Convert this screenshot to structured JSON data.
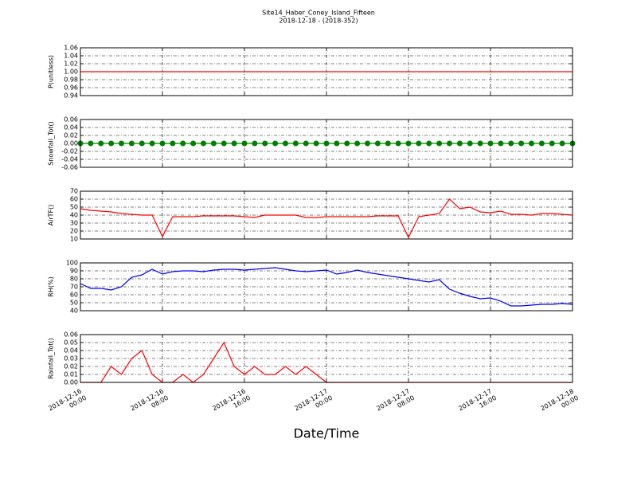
{
  "chart_data": [
    {
      "type": "line",
      "title": "Site14_Haber_Coney_Island_Fifteen",
      "subtitle": "2018-12-18 - (2018-352)",
      "ylabel": "P(unitless)",
      "color": "#ff0000",
      "grid": true,
      "xlim": [
        "2018-12-16 00:00",
        "2018-12-18 00:00"
      ],
      "xticks": [
        "2018-12-16 00:00",
        "2018-12-16 08:00",
        "2018-12-16 16:00",
        "2018-12-17 00:00",
        "2018-12-17 08:00",
        "2018-12-17 16:00",
        "2018-12-18 00:00"
      ],
      "ylim": [
        0.94,
        1.06
      ],
      "yticks": [
        0.94,
        0.96,
        0.98,
        {
          "value": 1,
          "label": "1.00"
        },
        1.02,
        1.04,
        1.06
      ],
      "x": [
        "2018-12-16 00:00",
        "2018-12-16 01:00",
        "2018-12-16 02:00",
        "2018-12-16 03:00",
        "2018-12-16 04:00",
        "2018-12-16 05:00",
        "2018-12-16 06:00",
        "2018-12-16 07:00",
        "2018-12-16 08:00",
        "2018-12-16 09:00",
        "2018-12-16 10:00",
        "2018-12-16 11:00",
        "2018-12-16 12:00",
        "2018-12-16 13:00",
        "2018-12-16 14:00",
        "2018-12-16 15:00",
        "2018-12-16 16:00",
        "2018-12-16 17:00",
        "2018-12-16 18:00",
        "2018-12-16 19:00",
        "2018-12-16 20:00",
        "2018-12-16 21:00",
        "2018-12-16 22:00",
        "2018-12-16 23:00",
        "2018-12-17 00:00",
        "2018-12-17 01:00",
        "2018-12-17 02:00",
        "2018-12-17 03:00",
        "2018-12-17 04:00",
        "2018-12-17 05:00",
        "2018-12-17 06:00",
        "2018-12-17 07:00",
        "2018-12-17 08:00",
        "2018-12-17 09:00",
        "2018-12-17 10:00",
        "2018-12-17 11:00",
        "2018-12-17 12:00",
        "2018-12-17 13:00",
        "2018-12-17 14:00",
        "2018-12-17 15:00",
        "2018-12-17 16:00",
        "2018-12-17 17:00",
        "2018-12-17 18:00",
        "2018-12-17 19:00",
        "2018-12-17 20:00",
        "2018-12-17 21:00",
        "2018-12-17 22:00",
        "2018-12-17 23:00",
        "2018-12-18 00:00"
      ],
      "values": [
        1,
        1,
        1,
        1,
        1,
        1,
        1,
        1,
        1,
        1,
        1,
        1,
        1,
        1,
        1,
        1,
        1,
        1,
        1,
        1,
        1,
        1,
        1,
        1,
        1,
        1,
        1,
        1,
        1,
        1,
        1,
        1,
        1,
        1,
        1,
        1,
        1,
        1,
        1,
        1,
        1,
        1,
        1,
        1,
        1,
        1,
        1,
        1,
        1
      ]
    },
    {
      "type": "line",
      "ylabel": "Snowfall_Tot()",
      "color": "#008000",
      "markers": true,
      "grid": true,
      "xlim": [
        "2018-12-16 00:00",
        "2018-12-18 00:00"
      ],
      "xticks": [
        "2018-12-16 00:00",
        "2018-12-16 08:00",
        "2018-12-16 16:00",
        "2018-12-17 00:00",
        "2018-12-17 08:00",
        "2018-12-17 16:00",
        "2018-12-18 00:00"
      ],
      "ylim": [
        -0.06,
        0.06
      ],
      "yticks": [
        -0.06,
        -0.04,
        -0.02,
        {
          "value": 0,
          "label": "0.00"
        },
        0.02,
        0.04,
        0.06
      ],
      "x": [
        "2018-12-16 00:00",
        "2018-12-16 01:00",
        "2018-12-16 02:00",
        "2018-12-16 03:00",
        "2018-12-16 04:00",
        "2018-12-16 05:00",
        "2018-12-16 06:00",
        "2018-12-16 07:00",
        "2018-12-16 08:00",
        "2018-12-16 09:00",
        "2018-12-16 10:00",
        "2018-12-16 11:00",
        "2018-12-16 12:00",
        "2018-12-16 13:00",
        "2018-12-16 14:00",
        "2018-12-16 15:00",
        "2018-12-16 16:00",
        "2018-12-16 17:00",
        "2018-12-16 18:00",
        "2018-12-16 19:00",
        "2018-12-16 20:00",
        "2018-12-16 21:00",
        "2018-12-16 22:00",
        "2018-12-16 23:00",
        "2018-12-17 00:00",
        "2018-12-17 01:00",
        "2018-12-17 02:00",
        "2018-12-17 03:00",
        "2018-12-17 04:00",
        "2018-12-17 05:00",
        "2018-12-17 06:00",
        "2018-12-17 07:00",
        "2018-12-17 08:00",
        "2018-12-17 09:00",
        "2018-12-17 10:00",
        "2018-12-17 11:00",
        "2018-12-17 12:00",
        "2018-12-17 13:00",
        "2018-12-17 14:00",
        "2018-12-17 15:00",
        "2018-12-17 16:00",
        "2018-12-17 17:00",
        "2018-12-17 18:00",
        "2018-12-17 19:00",
        "2018-12-17 20:00",
        "2018-12-17 21:00",
        "2018-12-17 22:00",
        "2018-12-17 23:00",
        "2018-12-18 00:00"
      ],
      "values": [
        0,
        0,
        0,
        0,
        0,
        0,
        0,
        0,
        0,
        0,
        0,
        0,
        0,
        0,
        0,
        0,
        0,
        0,
        0,
        0,
        0,
        0,
        0,
        0,
        0,
        0,
        0,
        0,
        0,
        0,
        0,
        0,
        0,
        0,
        0,
        0,
        0,
        0,
        0,
        0,
        0,
        0,
        0,
        0,
        0,
        0,
        0,
        0,
        0
      ]
    },
    {
      "type": "line",
      "ylabel": "AirTF()",
      "color": "#ff0000",
      "grid": true,
      "xlim": [
        "2018-12-16 00:00",
        "2018-12-18 00:00"
      ],
      "xticks": [
        "2018-12-16 00:00",
        "2018-12-16 08:00",
        "2018-12-16 16:00",
        "2018-12-17 00:00",
        "2018-12-17 08:00",
        "2018-12-17 16:00",
        "2018-12-18 00:00"
      ],
      "ylim": [
        10,
        70
      ],
      "yticks": [
        10,
        20,
        30,
        40,
        50,
        60,
        70
      ],
      "x": [
        "2018-12-16 00:00",
        "2018-12-16 01:00",
        "2018-12-16 02:00",
        "2018-12-16 03:00",
        "2018-12-16 04:00",
        "2018-12-16 05:00",
        "2018-12-16 06:00",
        "2018-12-16 07:00",
        "2018-12-16 08:00",
        "2018-12-16 09:00",
        "2018-12-16 10:00",
        "2018-12-16 11:00",
        "2018-12-16 12:00",
        "2018-12-16 13:00",
        "2018-12-16 14:00",
        "2018-12-16 15:00",
        "2018-12-16 16:00",
        "2018-12-16 17:00",
        "2018-12-16 18:00",
        "2018-12-16 19:00",
        "2018-12-16 20:00",
        "2018-12-16 21:00",
        "2018-12-16 22:00",
        "2018-12-16 23:00",
        "2018-12-17 00:00",
        "2018-12-17 01:00",
        "2018-12-17 02:00",
        "2018-12-17 03:00",
        "2018-12-17 04:00",
        "2018-12-17 05:00",
        "2018-12-17 06:00",
        "2018-12-17 07:00",
        "2018-12-17 08:00",
        "2018-12-17 09:00",
        "2018-12-17 10:00",
        "2018-12-17 11:00",
        "2018-12-17 12:00",
        "2018-12-17 13:00",
        "2018-12-17 14:00",
        "2018-12-17 15:00",
        "2018-12-17 16:00",
        "2018-12-17 17:00",
        "2018-12-17 18:00",
        "2018-12-17 19:00",
        "2018-12-17 20:00",
        "2018-12-17 21:00",
        "2018-12-17 22:00",
        "2018-12-17 23:00",
        "2018-12-18 00:00"
      ],
      "values": [
        48,
        46,
        45,
        44,
        42,
        41,
        40,
        40,
        13,
        38,
        38,
        38,
        39,
        39,
        39,
        39,
        38,
        37,
        40,
        40,
        40,
        40,
        37,
        37,
        38,
        38,
        38,
        38,
        38,
        39,
        39,
        39,
        12,
        38,
        40,
        42,
        60,
        48,
        50,
        44,
        43,
        45,
        41,
        41,
        40,
        42,
        42,
        41,
        40
      ]
    },
    {
      "type": "line",
      "ylabel": "RH(%)",
      "color": "#0000ff",
      "grid": true,
      "xlim": [
        "2018-12-16 00:00",
        "2018-12-18 00:00"
      ],
      "xticks": [
        "2018-12-16 00:00",
        "2018-12-16 08:00",
        "2018-12-16 16:00",
        "2018-12-17 00:00",
        "2018-12-17 08:00",
        "2018-12-17 16:00",
        "2018-12-18 00:00"
      ],
      "ylim": [
        40,
        100
      ],
      "yticks": [
        40,
        50,
        60,
        70,
        80,
        90,
        100
      ],
      "x": [
        "2018-12-16 00:00",
        "2018-12-16 01:00",
        "2018-12-16 02:00",
        "2018-12-16 03:00",
        "2018-12-16 04:00",
        "2018-12-16 05:00",
        "2018-12-16 06:00",
        "2018-12-16 07:00",
        "2018-12-16 08:00",
        "2018-12-16 09:00",
        "2018-12-16 10:00",
        "2018-12-16 11:00",
        "2018-12-16 12:00",
        "2018-12-16 13:00",
        "2018-12-16 14:00",
        "2018-12-16 15:00",
        "2018-12-16 16:00",
        "2018-12-16 17:00",
        "2018-12-16 18:00",
        "2018-12-16 19:00",
        "2018-12-16 20:00",
        "2018-12-16 21:00",
        "2018-12-16 22:00",
        "2018-12-16 23:00",
        "2018-12-17 00:00",
        "2018-12-17 01:00",
        "2018-12-17 02:00",
        "2018-12-17 03:00",
        "2018-12-17 04:00",
        "2018-12-17 05:00",
        "2018-12-17 06:00",
        "2018-12-17 07:00",
        "2018-12-17 08:00",
        "2018-12-17 09:00",
        "2018-12-17 10:00",
        "2018-12-17 11:00",
        "2018-12-17 12:00",
        "2018-12-17 13:00",
        "2018-12-17 14:00",
        "2018-12-17 15:00",
        "2018-12-17 16:00",
        "2018-12-17 17:00",
        "2018-12-17 18:00",
        "2018-12-17 19:00",
        "2018-12-17 20:00",
        "2018-12-17 21:00",
        "2018-12-17 22:00",
        "2018-12-17 23:00",
        "2018-12-18 00:00"
      ],
      "values": [
        74,
        68,
        68,
        66,
        70,
        82,
        85,
        92,
        86,
        89,
        90,
        90,
        89,
        91,
        92,
        92,
        91,
        92,
        93,
        94,
        92,
        90,
        89,
        90,
        91,
        86,
        88,
        91,
        88,
        86,
        84,
        82,
        80,
        78,
        76,
        79,
        67,
        62,
        58,
        55,
        56,
        52,
        46,
        46,
        47,
        48,
        48,
        49,
        48
      ]
    },
    {
      "type": "line",
      "ylabel": "Rainfall_Tot()",
      "xlabel": "Date/Time",
      "color": "#ff0000",
      "grid": true,
      "xlim": [
        "2018-12-16 00:00",
        "2018-12-18 00:00"
      ],
      "xticks": [
        "2018-12-16 00:00",
        "2018-12-16 08:00",
        "2018-12-16 16:00",
        "2018-12-17 00:00",
        "2018-12-17 08:00",
        "2018-12-17 16:00",
        "2018-12-18 00:00"
      ],
      "ylim": [
        0,
        0.06
      ],
      "yticks": [
        {
          "value": 0,
          "label": "0.00"
        },
        0.01,
        0.02,
        0.03,
        0.04,
        0.05,
        0.06
      ],
      "x": [
        "2018-12-16 00:00",
        "2018-12-16 01:00",
        "2018-12-16 02:00",
        "2018-12-16 03:00",
        "2018-12-16 04:00",
        "2018-12-16 05:00",
        "2018-12-16 06:00",
        "2018-12-16 07:00",
        "2018-12-16 08:00",
        "2018-12-16 09:00",
        "2018-12-16 10:00",
        "2018-12-16 11:00",
        "2018-12-16 12:00",
        "2018-12-16 13:00",
        "2018-12-16 14:00",
        "2018-12-16 15:00",
        "2018-12-16 16:00",
        "2018-12-16 17:00",
        "2018-12-16 18:00",
        "2018-12-16 19:00",
        "2018-12-16 20:00",
        "2018-12-16 21:00",
        "2018-12-16 22:00",
        "2018-12-16 23:00",
        "2018-12-17 00:00",
        "2018-12-17 01:00",
        "2018-12-17 02:00",
        "2018-12-17 03:00",
        "2018-12-17 04:00",
        "2018-12-17 05:00",
        "2018-12-17 06:00",
        "2018-12-17 07:00",
        "2018-12-17 08:00",
        "2018-12-17 09:00",
        "2018-12-17 10:00",
        "2018-12-17 11:00",
        "2018-12-17 12:00",
        "2018-12-17 13:00",
        "2018-12-17 14:00",
        "2018-12-17 15:00",
        "2018-12-17 16:00",
        "2018-12-17 17:00",
        "2018-12-17 18:00",
        "2018-12-17 19:00",
        "2018-12-17 20:00",
        "2018-12-17 21:00",
        "2018-12-17 22:00",
        "2018-12-17 23:00",
        "2018-12-18 00:00"
      ],
      "values": [
        0,
        0,
        0,
        0.02,
        0.01,
        0.03,
        0.04,
        0.01,
        0,
        0,
        0.01,
        0,
        0.01,
        0.03,
        0.05,
        0.02,
        0.01,
        0.02,
        0.01,
        0.01,
        0.02,
        0.01,
        0.02,
        0.01,
        0,
        0,
        0,
        0,
        0,
        0,
        0,
        0,
        0,
        0,
        0,
        0,
        0,
        0,
        0,
        0,
        0,
        0,
        0,
        0,
        0,
        0,
        0,
        0,
        0
      ]
    }
  ]
}
